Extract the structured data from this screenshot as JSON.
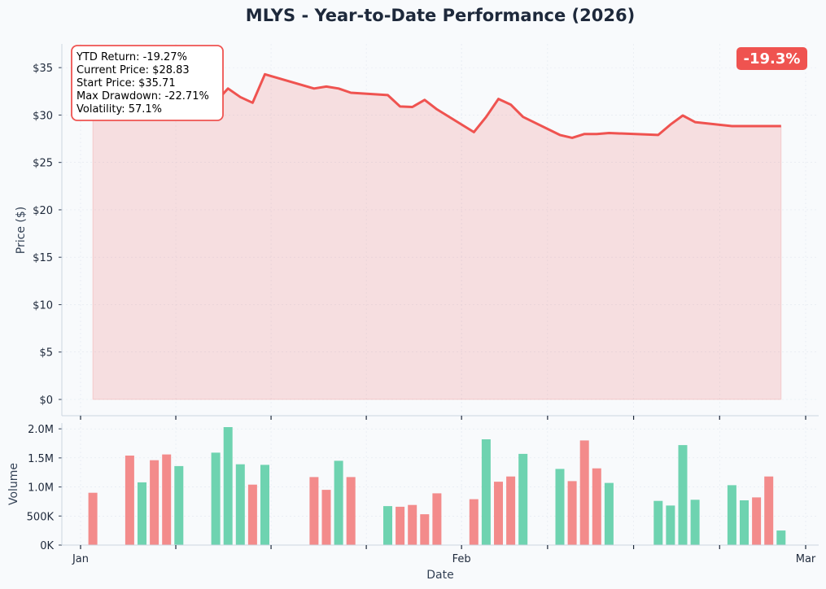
{
  "chart_data": [
    {
      "type": "line",
      "title": "MLYS - Year-to-Date Performance (2026)",
      "ylabel": "Price ($)",
      "ylim": [
        0,
        37.5
      ],
      "yticks": [
        0,
        5,
        10,
        15,
        20,
        25,
        30,
        35
      ],
      "ytick_labels": [
        "$0",
        "$5",
        "$10",
        "$15",
        "$20",
        "$25",
        "$30",
        "$35"
      ],
      "grid": true,
      "fill": true,
      "color": "#ef5350",
      "x": [
        "2026-01-02",
        "2026-01-05",
        "2026-01-06",
        "2026-01-07",
        "2026-01-08",
        "2026-01-09",
        "2026-01-12",
        "2026-01-13",
        "2026-01-14",
        "2026-01-15",
        "2026-01-16",
        "2026-01-20",
        "2026-01-21",
        "2026-01-22",
        "2026-01-23",
        "2026-01-26",
        "2026-01-27",
        "2026-01-28",
        "2026-01-29",
        "2026-01-30",
        "2026-02-02",
        "2026-02-03",
        "2026-02-04",
        "2026-02-05",
        "2026-02-06",
        "2026-02-09",
        "2026-02-10",
        "2026-02-11",
        "2026-02-12",
        "2026-02-13",
        "2026-02-17",
        "2026-02-18",
        "2026-02-19",
        "2026-02-20",
        "2026-02-23",
        "2026-02-24",
        "2026-02-25",
        "2026-02-26",
        "2026-02-27"
      ],
      "values": [
        35.71,
        33.6,
        33.2,
        33.0,
        32.9,
        33.4,
        31.4,
        32.8,
        31.9,
        31.3,
        34.3,
        32.8,
        33.0,
        32.8,
        32.35,
        32.1,
        30.9,
        30.85,
        31.6,
        30.6,
        28.2,
        29.8,
        31.7,
        31.1,
        29.8,
        27.9,
        27.6,
        28.0,
        28.0,
        28.1,
        27.9,
        29.0,
        29.95,
        29.25,
        28.83,
        28.83,
        28.83,
        28.83,
        28.83
      ]
    },
    {
      "type": "bar",
      "xlabel": "Date",
      "ylabel": "Volume",
      "ylim": [
        0,
        2100000
      ],
      "yticks": [
        0,
        500000,
        1000000,
        1500000,
        2000000
      ],
      "ytick_labels": [
        "0K",
        "500K",
        "1.0M",
        "1.5M",
        "2.0M"
      ],
      "xticks": [
        "2026-01-01",
        "2026-02-01",
        "2026-03-01"
      ],
      "xtick_labels": [
        "Jan",
        "Feb",
        "Mar"
      ],
      "colors": {
        "up": "#66d1ac",
        "down": "#f28585"
      },
      "x": [
        "2026-01-02",
        "2026-01-05",
        "2026-01-06",
        "2026-01-07",
        "2026-01-08",
        "2026-01-09",
        "2026-01-12",
        "2026-01-13",
        "2026-01-14",
        "2026-01-15",
        "2026-01-16",
        "2026-01-20",
        "2026-01-21",
        "2026-01-22",
        "2026-01-23",
        "2026-01-26",
        "2026-01-27",
        "2026-01-28",
        "2026-01-29",
        "2026-01-30",
        "2026-02-02",
        "2026-02-03",
        "2026-02-04",
        "2026-02-05",
        "2026-02-06",
        "2026-02-09",
        "2026-02-10",
        "2026-02-11",
        "2026-02-12",
        "2026-02-13",
        "2026-02-17",
        "2026-02-18",
        "2026-02-19",
        "2026-02-20",
        "2026-02-23",
        "2026-02-24",
        "2026-02-25",
        "2026-02-26",
        "2026-02-27"
      ],
      "values": [
        900000,
        1540000,
        1080000,
        1460000,
        1560000,
        1360000,
        1590000,
        2030000,
        1390000,
        1040000,
        1380000,
        1170000,
        950000,
        1450000,
        1170000,
        670000,
        660000,
        690000,
        530000,
        890000,
        790000,
        1820000,
        1090000,
        1180000,
        1570000,
        1310000,
        1100000,
        1800000,
        1320000,
        1070000,
        760000,
        680000,
        1720000,
        780000,
        1030000,
        770000,
        820000,
        1180000,
        250000
      ],
      "direction": [
        "down",
        "down",
        "up",
        "down",
        "down",
        "up",
        "up",
        "up",
        "up",
        "down",
        "up",
        "down",
        "down",
        "up",
        "down",
        "up",
        "down",
        "down",
        "down",
        "down",
        "down",
        "up",
        "down",
        "down",
        "up",
        "up",
        "down",
        "down",
        "down",
        "up",
        "up",
        "up",
        "up",
        "up",
        "up",
        "up",
        "down",
        "down",
        "up"
      ]
    }
  ],
  "stats_box": {
    "lines": [
      "YTD Return: -19.27%",
      "Current Price: $28.83",
      "Start Price: $35.71",
      "Max Drawdown: -22.71%",
      "Volatility: 57.1%"
    ],
    "border_color": "#ef5350"
  },
  "badge": {
    "text": "-19.3%",
    "color": "#ef5350"
  }
}
